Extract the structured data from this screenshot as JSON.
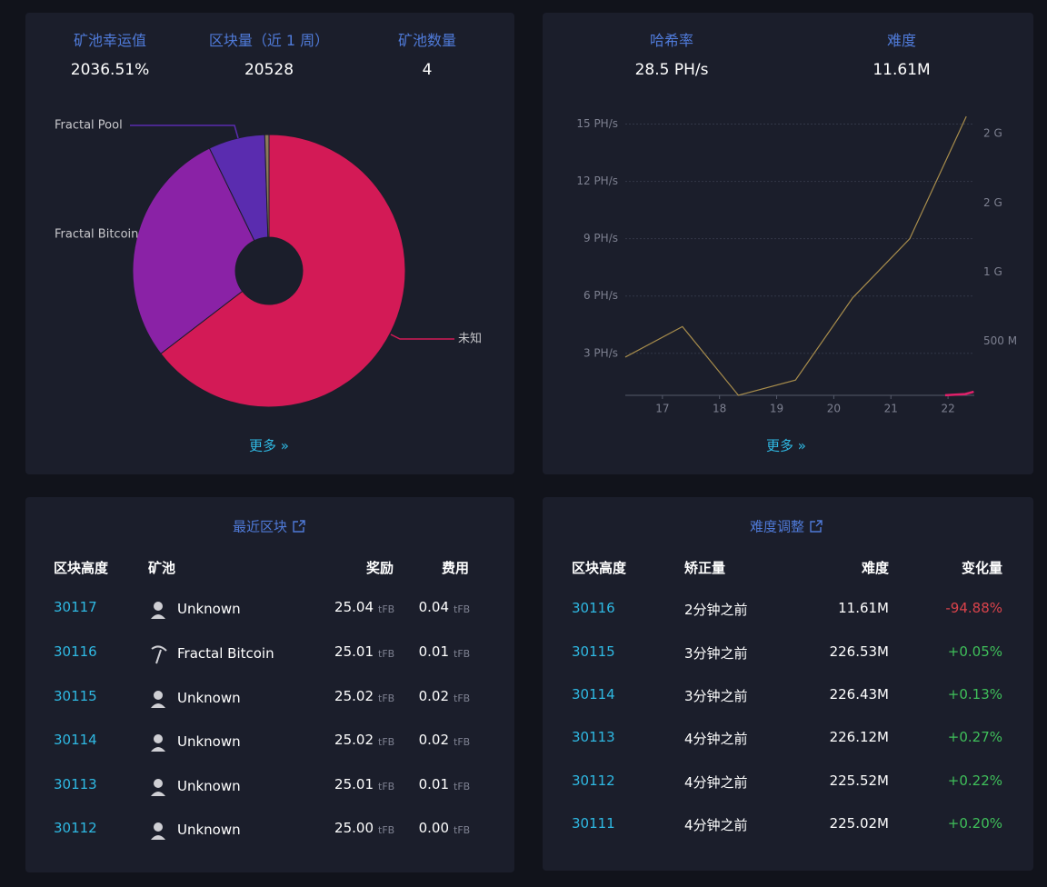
{
  "pool_stats": {
    "items": [
      {
        "label": "矿池幸运值",
        "value": "2036.51%"
      },
      {
        "label": "区块量（近 1 周）",
        "value": "20528"
      },
      {
        "label": "矿池数量",
        "value": "4"
      }
    ]
  },
  "pool_chart": {
    "type": "pie",
    "categories": [
      "未知",
      "Fractal Bitcoin",
      "Fractal Pool",
      null
    ],
    "values": [
      64.6,
      28.2,
      6.7,
      0.5
    ],
    "colors": [
      "#d31a56",
      "#8a22a6",
      "#5a2caf",
      "#8c7a5a"
    ]
  },
  "more_label": "更多 »",
  "network_stats": {
    "items": [
      {
        "label": "哈希率",
        "value": "28.5 PH/s"
      },
      {
        "label": "难度",
        "value": "11.61M"
      }
    ]
  },
  "network_chart": {
    "type": "line",
    "grid": true,
    "xlim": [
      16.35,
      22.46
    ],
    "xticks": [
      17,
      18,
      19,
      20,
      21,
      22
    ],
    "ylim": [
      0.8,
      15.5
    ],
    "yticks": [
      {
        "value": 3,
        "label": "3 PH/s"
      },
      {
        "value": 6,
        "label": "6 PH/s"
      },
      {
        "value": 9,
        "label": "9 PH/s"
      },
      {
        "value": 12,
        "label": "12 PH/s"
      },
      {
        "value": 15,
        "label": "15 PH/s"
      }
    ],
    "y2lim": [
      109,
      2139
    ],
    "y2ticks": [
      {
        "value": 500,
        "label": "500 M"
      },
      {
        "value": 1000,
        "label": "1 G"
      },
      {
        "value": 1500,
        "label": "2 G"
      },
      {
        "value": 2000,
        "label": "2 G"
      }
    ],
    "series": [
      {
        "color": "#a88d4c",
        "x": [
          16.35,
          17.35,
          18.33,
          19.33,
          20.33,
          21.33,
          22.32
        ],
        "values": [
          2.8,
          4.4,
          0.8,
          1.6,
          5.9,
          9.0,
          15.4
        ]
      },
      {
        "color": "#e0206a",
        "axis": "y2",
        "x": [
          21.95,
          22.3,
          22.45
        ],
        "values": [
          110,
          118,
          135
        ]
      }
    ]
  },
  "recent_blocks": {
    "title": "最近区块",
    "columns": [
      "区块高度",
      "矿池",
      "奖励",
      "费用"
    ],
    "unit": "tFB",
    "rows": [
      [
        "30117",
        "Unknown",
        "25.04",
        "0.04"
      ],
      [
        "30116",
        "Fractal Bitcoin",
        "25.01",
        "0.01"
      ],
      [
        "30115",
        "Unknown",
        "25.02",
        "0.02"
      ],
      [
        "30114",
        "Unknown",
        "25.02",
        "0.02"
      ],
      [
        "30113",
        "Unknown",
        "25.01",
        "0.01"
      ],
      [
        "30112",
        "Unknown",
        "25.00",
        "0.00"
      ]
    ]
  },
  "difficulty_adjustments": {
    "title": "难度调整",
    "columns": [
      "区块高度",
      "矫正量",
      "难度",
      "变化量"
    ],
    "rows": [
      [
        "30116",
        "2分钟之前",
        "11.61M",
        "-94.88%"
      ],
      [
        "30115",
        "3分钟之前",
        "226.53M",
        "+0.05%"
      ],
      [
        "30114",
        "3分钟之前",
        "226.43M",
        "+0.13%"
      ],
      [
        "30113",
        "4分钟之前",
        "226.12M",
        "+0.27%"
      ],
      [
        "30112",
        "4分钟之前",
        "225.52M",
        "+0.22%"
      ],
      [
        "30111",
        "4分钟之前",
        "225.02M",
        "+0.20%"
      ]
    ]
  }
}
